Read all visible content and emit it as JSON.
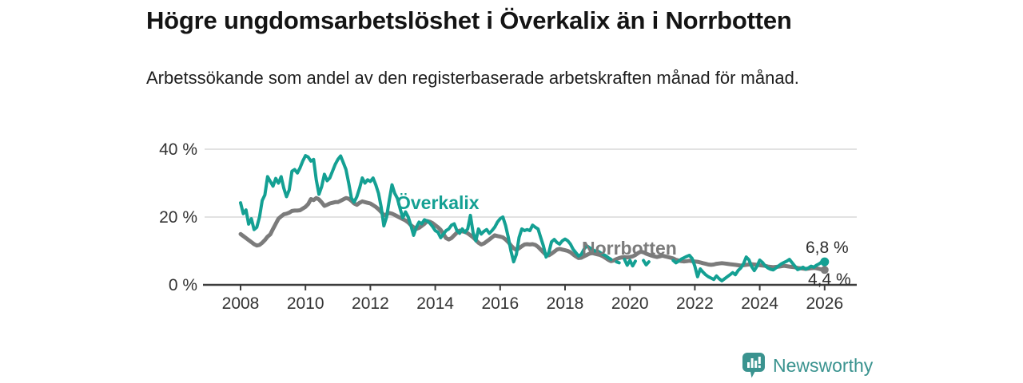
{
  "title": "Högre ungdomsarbetslöshet i Överkalix än i Norrbotten",
  "subtitle": "Arbetssökande som andel av den registerbaserade arbetskraften månad för månad.",
  "branding": {
    "text": "Newsworthy",
    "icon": "bar-chart-speech-bubble-icon",
    "color": "#3a938f"
  },
  "chart_data": {
    "type": "line",
    "frequency": "monthly",
    "x_start_year": 2008,
    "x_end_year": 2026,
    "unit": "%",
    "grid": "horizontal",
    "legend_position": "inline-labels",
    "ylim": [
      0,
      42
    ],
    "x_ticks": [
      2008,
      2010,
      2012,
      2014,
      2016,
      2018,
      2020,
      2022,
      2024,
      2026
    ],
    "y_ticks": [
      {
        "value": 0,
        "label": "0 %"
      },
      {
        "value": 20,
        "label": "20 %"
      },
      {
        "value": 40,
        "label": "40 %"
      }
    ],
    "colors": {
      "axis": "#3d3d3d",
      "grid": "#d8d8d8",
      "tick_text": "#333333",
      "value_label": "#2d2d2d"
    },
    "series": [
      {
        "name": "Överkalix",
        "color": "#14a093",
        "end_label": "6,8 %",
        "end_value": 6.8,
        "values": [
          24.2,
          21.0,
          22.1,
          17.9,
          19.5,
          16.3,
          17.0,
          20.0,
          24.9,
          26.5,
          31.9,
          30.5,
          29.1,
          31.4,
          30.0,
          31.9,
          28.5,
          26.0,
          28.0,
          33.5,
          34.0,
          33.0,
          34.5,
          36.5,
          38.1,
          37.7,
          36.5,
          37.0,
          31.0,
          26.7,
          29.0,
          32.6,
          30.7,
          31.5,
          33.5,
          35.5,
          37.0,
          38.0,
          36.0,
          34.0,
          30.0,
          25.6,
          24.4,
          26.0,
          28.5,
          31.5,
          30.0,
          31.0,
          30.5,
          31.5,
          29.5,
          27.0,
          23.0,
          17.4,
          20.0,
          25.0,
          29.5,
          27.0,
          25.5,
          22.5,
          19.8,
          21.5,
          20.0,
          17.5,
          14.6,
          17.0,
          18.5,
          18.0,
          19.2,
          18.8,
          18.2,
          17.2,
          16.0,
          15.5,
          13.9,
          15.0,
          16.0,
          16.5,
          17.6,
          18.0,
          16.0,
          15.2,
          16.5,
          15.5,
          16.5,
          20.5,
          15.3,
          13.0,
          16.5,
          15.0,
          15.8,
          16.3,
          15.2,
          16.0,
          17.0,
          18.5,
          19.5,
          20.0,
          17.5,
          14.0,
          10.0,
          6.8,
          9.0,
          14.0,
          16.5,
          16.0,
          16.3,
          16.0,
          17.6,
          17.0,
          16.5,
          14.0,
          11.5,
          8.2,
          9.5,
          12.7,
          13.4,
          12.5,
          12.0,
          13.0,
          13.5,
          13.0,
          12.0,
          10.5,
          9.5,
          8.5,
          9.0,
          10.5,
          11.5,
          11.0,
          10.5,
          10.0,
          10.0,
          9.5,
          9.0,
          8.6,
          8.0,
          7.5,
          null,
          6.8,
          6.5,
          null,
          7.5,
          5.8,
          7.2,
          5.6,
          7.0,
          null,
          null,
          7.2,
          5.9,
          6.8,
          null,
          null,
          null,
          null,
          null,
          null,
          null,
          null,
          7.2,
          6.5,
          7.0,
          7.6,
          8.0,
          8.4,
          8.7,
          7.8,
          5.5,
          2.4,
          4.7,
          3.8,
          3.0,
          2.4,
          2.0,
          1.6,
          2.6,
          1.8,
          1.2,
          1.8,
          2.4,
          3.0,
          3.6,
          3.0,
          4.2,
          5.0,
          6.2,
          8.2,
          7.4,
          5.4,
          4.2,
          5.5,
          7.3,
          6.6,
          5.6,
          5.0,
          4.6,
          4.4,
          5.0,
          5.6,
          6.2,
          6.6,
          7.0,
          7.5,
          6.5,
          5.5,
          4.5,
          4.8,
          5.2,
          4.6,
          5.0,
          5.5,
          5.2,
          5.8,
          6.2,
          6.8,
          6.8
        ]
      },
      {
        "name": "Norrbotten",
        "color": "#7b7b7b",
        "end_label": "4,4 %",
        "end_value": 4.4,
        "values": [
          15.0,
          14.4,
          13.8,
          13.2,
          12.6,
          12.0,
          11.6,
          11.8,
          12.4,
          13.2,
          14.2,
          14.9,
          16.5,
          18.0,
          19.5,
          20.2,
          20.8,
          21.0,
          21.3,
          21.8,
          21.9,
          21.9,
          22.0,
          22.5,
          23.0,
          23.8,
          25.3,
          25.0,
          25.6,
          25.2,
          24.3,
          23.3,
          23.6,
          24.0,
          24.2,
          24.4,
          24.4,
          24.8,
          25.2,
          25.6,
          25.4,
          24.8,
          24.0,
          23.6,
          24.2,
          24.6,
          24.4,
          24.2,
          24.0,
          23.5,
          23.0,
          22.3,
          21.5,
          20.5,
          20.8,
          21.2,
          21.0,
          20.6,
          20.2,
          19.8,
          19.4,
          19.0,
          18.4,
          17.6,
          17.0,
          16.5,
          16.8,
          17.4,
          18.0,
          18.8,
          18.6,
          18.2,
          17.6,
          17.0,
          16.2,
          15.0,
          13.8,
          13.4,
          13.8,
          14.6,
          15.4,
          16.0,
          15.8,
          15.6,
          15.2,
          14.6,
          14.0,
          13.2,
          12.4,
          11.9,
          12.2,
          12.8,
          13.4,
          14.0,
          14.6,
          14.4,
          14.2,
          14.0,
          13.4,
          12.6,
          11.6,
          10.8,
          10.3,
          10.8,
          11.4,
          11.9,
          12.0,
          11.9,
          12.0,
          11.8,
          11.2,
          10.4,
          9.6,
          8.8,
          8.7,
          9.2,
          9.8,
          10.4,
          10.6,
          10.4,
          10.2,
          10.0,
          9.6,
          9.0,
          8.4,
          7.9,
          8.0,
          8.4,
          8.8,
          9.2,
          9.4,
          9.2,
          9.0,
          8.8,
          8.4,
          7.9,
          7.4,
          7.0,
          7.2,
          7.6,
          7.9,
          8.1,
          8.2,
          8.1,
          8.2,
          8.4,
          8.8,
          9.4,
          9.8,
          9.6,
          9.2,
          8.9,
          8.6,
          8.4,
          8.2,
          8.4,
          8.6,
          8.4,
          8.2,
          8.0,
          7.8,
          7.4,
          7.2,
          7.0,
          6.9,
          7.0,
          7.1,
          7.0,
          6.9,
          6.8,
          6.6,
          6.4,
          6.2,
          6.0,
          5.9,
          6.0,
          6.2,
          6.3,
          6.4,
          6.3,
          6.2,
          6.1,
          6.0,
          5.9,
          5.8,
          5.7,
          5.8,
          5.9,
          6.0,
          6.1,
          6.0,
          5.9,
          5.8,
          5.7,
          5.6,
          5.4,
          5.3,
          5.2,
          5.3,
          5.4,
          5.5,
          5.6,
          5.5,
          5.4,
          5.3,
          5.2,
          5.0,
          4.9,
          4.8,
          4.7,
          4.8,
          4.9,
          5.0,
          4.9,
          4.7,
          4.5,
          4.4
        ]
      }
    ]
  }
}
